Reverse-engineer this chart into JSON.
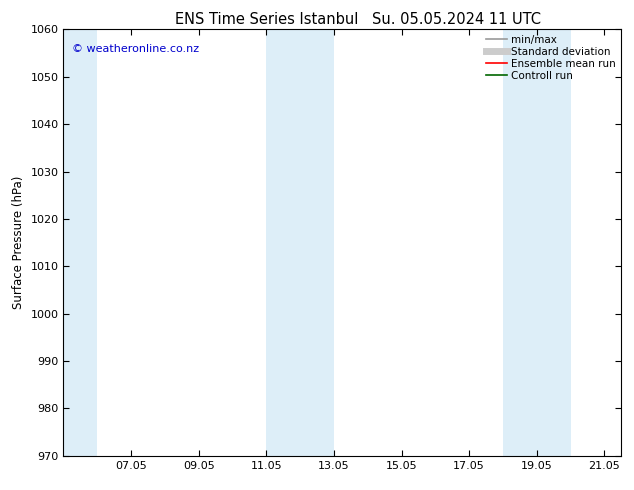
{
  "title1": "ENS Time Series Istanbul",
  "title2": "Su. 05.05.2024 11 UTC",
  "ylabel": "Surface Pressure (hPa)",
  "ylim": [
    970,
    1060
  ],
  "yticks": [
    970,
    980,
    990,
    1000,
    1010,
    1020,
    1030,
    1040,
    1050,
    1060
  ],
  "xlim": [
    5.0,
    21.5
  ],
  "xtick_positions": [
    7,
    9,
    11,
    13,
    15,
    17,
    19,
    21
  ],
  "xtick_labels": [
    "07.05",
    "09.05",
    "11.05",
    "13.05",
    "15.05",
    "17.05",
    "19.05",
    "21.05"
  ],
  "bg_color": "#ffffff",
  "plot_bg_color": "#ffffff",
  "shaded_bands": [
    {
      "x_start": 5.0,
      "x_end": 6.0,
      "color": "#ddeef8"
    },
    {
      "x_start": 11.0,
      "x_end": 12.0,
      "color": "#ddeef8"
    },
    {
      "x_start": 12.0,
      "x_end": 13.0,
      "color": "#ddeef8"
    },
    {
      "x_start": 18.0,
      "x_end": 19.0,
      "color": "#ddeef8"
    },
    {
      "x_start": 19.0,
      "x_end": 20.0,
      "color": "#ddeef8"
    }
  ],
  "watermark": "© weatheronline.co.nz",
  "watermark_color": "#0000cc",
  "legend_items": [
    {
      "label": "min/max",
      "color": "#999999",
      "lw": 1.2,
      "style": "solid"
    },
    {
      "label": "Standard deviation",
      "color": "#cccccc",
      "lw": 5,
      "style": "solid"
    },
    {
      "label": "Ensemble mean run",
      "color": "#ff0000",
      "lw": 1.2,
      "style": "solid"
    },
    {
      "label": "Controll run",
      "color": "#006600",
      "lw": 1.2,
      "style": "solid"
    }
  ],
  "title_fontsize": 10.5,
  "ylabel_fontsize": 8.5,
  "tick_fontsize": 8,
  "watermark_fontsize": 8,
  "legend_fontsize": 7.5,
  "figsize": [
    6.34,
    4.9
  ],
  "dpi": 100
}
